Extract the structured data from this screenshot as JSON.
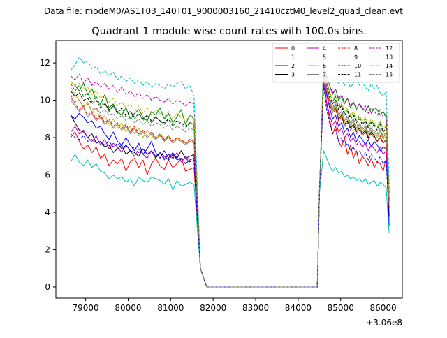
{
  "suptitle": "Data file: modeM0/AS1T03_140T01_9000003160_21410cztM0_level2_quad_clean.evt",
  "chart_data": {
    "type": "line",
    "title": "Quadrant 1 module wise count rates with 100.0s bins.",
    "xlabel": "",
    "ylabel": "",
    "offset_text": "+3.06e8",
    "xlim": [
      78300,
      86450
    ],
    "ylim": [
      -0.6,
      13.2
    ],
    "grid": false,
    "legend_position": "upper-right",
    "x_ticks": [
      79000,
      80000,
      81000,
      82000,
      83000,
      84000,
      85000,
      86000
    ],
    "x_tick_labels": [
      "79000",
      "80000",
      "81000",
      "82000",
      "83000",
      "84000",
      "85000",
      "86000"
    ],
    "y_ticks": [
      0,
      2,
      4,
      6,
      8,
      10,
      12
    ],
    "y_tick_labels": [
      "0",
      "2",
      "4",
      "6",
      "8",
      "10",
      "12"
    ],
    "gap": {
      "drop_start": 81650,
      "zero_start": 81850,
      "zero_end": 84450,
      "rise_end": 84600
    },
    "x_start": 78650,
    "bin": 100,
    "series": [
      {
        "name": "0",
        "color": "#ff0000",
        "dash": "solid",
        "values": [
          8.0,
          8.3,
          7.8,
          7.4,
          7.6,
          7.2,
          7.5,
          6.9,
          7.1,
          6.5,
          6.8,
          6.6,
          6.9,
          6.2,
          6.7,
          6.9,
          6.4,
          6.8,
          6.0,
          6.6,
          6.9,
          6.5,
          6.3,
          6.8,
          6.4,
          6.6,
          6.9,
          6.2,
          6.3,
          6.4
        ],
        "post": [
          11.6,
          9.8,
          9.0,
          8.2,
          8.6,
          7.8,
          7.5,
          8.0,
          7.1,
          7.6,
          6.9,
          7.3,
          6.6,
          7.0,
          6.8,
          6.5,
          6.9,
          6.4,
          6.7,
          6.6,
          6.2,
          6.9,
          5.5
        ]
      },
      {
        "name": "1",
        "color": "#008000",
        "dash": "solid",
        "values": [
          11.0,
          10.8,
          10.5,
          10.9,
          10.3,
          10.6,
          10.0,
          9.8,
          10.3,
          9.6,
          9.8,
          9.4,
          9.2,
          9.6,
          9.0,
          9.3,
          9.5,
          9.1,
          8.9,
          9.4,
          9.2,
          9.6,
          9.0,
          9.3,
          8.8,
          9.1,
          9.5,
          8.7,
          9.2,
          9.0
        ],
        "post": [
          12.0,
          11.3,
          10.8,
          10.3,
          10.6,
          10.0,
          10.2,
          9.8,
          10.1,
          9.6,
          9.9,
          9.5,
          9.8,
          9.6,
          9.4,
          9.7,
          9.3,
          9.6,
          9.5,
          9.2,
          9.4,
          9.1,
          5.0
        ]
      },
      {
        "name": "2",
        "color": "#0000ff",
        "dash": "solid",
        "values": [
          9.2,
          9.0,
          9.3,
          9.1,
          8.8,
          8.9,
          8.5,
          8.6,
          8.2,
          7.9,
          8.3,
          7.8,
          7.6,
          8.0,
          7.6,
          7.3,
          7.7,
          7.1,
          7.4,
          7.8,
          7.2,
          6.9,
          7.3,
          6.9,
          7.2,
          6.8,
          6.9,
          6.6,
          6.8,
          6.9
        ],
        "post": [
          11.5,
          10.3,
          9.6,
          9.0,
          9.2,
          8.6,
          8.8,
          8.3,
          8.5,
          8.0,
          8.3,
          7.8,
          8.1,
          7.9,
          7.6,
          7.9,
          7.5,
          7.8,
          7.6,
          7.3,
          7.5,
          7.4,
          3.3
        ]
      },
      {
        "name": "3",
        "color": "#000000",
        "dash": "solid",
        "values": [
          9.2,
          8.8,
          8.4,
          8.3,
          8.0,
          8.2,
          7.7,
          7.8,
          7.5,
          7.6,
          7.2,
          7.4,
          7.6,
          7.1,
          7.3,
          7.2,
          7.0,
          7.4,
          7.1,
          7.3,
          6.9,
          7.2,
          7.0,
          6.8,
          7.1,
          6.9,
          7.3,
          6.9,
          7.0,
          7.1
        ],
        "post": [
          11.3,
          10.5,
          9.9,
          9.4,
          9.6,
          9.0,
          9.2,
          8.7,
          8.9,
          8.5,
          8.7,
          8.3,
          8.5,
          8.2,
          8.4,
          8.0,
          8.3,
          8.1,
          7.8,
          8.0,
          7.7,
          7.9,
          3.8
        ]
      },
      {
        "name": "4",
        "color": "#bf00bf",
        "dash": "solid",
        "values": [
          8.3,
          8.6,
          8.2,
          8.4,
          8.0,
          7.8,
          8.1,
          7.6,
          7.9,
          7.4,
          7.7,
          7.5,
          7.2,
          7.6,
          7.3,
          7.0,
          7.4,
          7.1,
          6.9,
          7.3,
          7.0,
          7.2,
          6.8,
          7.1,
          6.9,
          7.2,
          6.7,
          7.0,
          6.8,
          6.9
        ],
        "post": [
          11.0,
          9.9,
          9.2,
          8.7,
          8.9,
          8.3,
          8.5,
          8.0,
          8.2,
          7.8,
          8.0,
          7.6,
          7.8,
          7.5,
          7.7,
          7.3,
          7.6,
          7.4,
          7.2,
          7.5,
          7.1,
          7.3,
          4.2
        ]
      },
      {
        "name": "5",
        "color": "#00bfbf",
        "dash": "solid",
        "values": [
          6.7,
          7.1,
          6.7,
          6.5,
          6.8,
          6.4,
          6.6,
          6.2,
          6.1,
          5.8,
          6.0,
          5.8,
          5.9,
          5.6,
          5.8,
          5.4,
          5.9,
          5.7,
          5.6,
          5.9,
          5.8,
          5.7,
          5.5,
          5.8,
          5.2,
          5.7,
          5.4,
          5.5,
          5.6,
          5.5
        ],
        "post": [
          7.3,
          6.9,
          6.5,
          6.2,
          6.4,
          6.1,
          6.2,
          5.9,
          6.0,
          5.8,
          5.9,
          5.7,
          5.8,
          5.6,
          5.8,
          5.5,
          5.6,
          5.7,
          5.4,
          5.6,
          5.5,
          5.3,
          2.9
        ]
      },
      {
        "name": "6",
        "color": "#bfbf00",
        "dash": "solid",
        "values": [
          10.7,
          10.3,
          10.0,
          9.6,
          9.9,
          9.3,
          9.6,
          9.0,
          9.2,
          8.7,
          9.0,
          8.5,
          8.8,
          8.3,
          8.6,
          8.2,
          8.5,
          8.0,
          8.4,
          8.1,
          7.9,
          8.2,
          7.8,
          8.1,
          7.7,
          8.0,
          7.8,
          7.6,
          7.9,
          7.8
        ],
        "post": [
          11.2,
          10.5,
          9.9,
          9.4,
          9.7,
          9.1,
          9.3,
          8.8,
          9.0,
          8.6,
          8.8,
          8.4,
          8.6,
          8.3,
          8.5,
          8.1,
          8.4,
          8.2,
          8.0,
          8.3,
          7.9,
          8.1,
          4.4
        ]
      },
      {
        "name": "7",
        "color": "#808080",
        "dash": "solid",
        "values": [
          10.0,
          9.7,
          9.4,
          9.6,
          9.1,
          9.3,
          8.9,
          9.1,
          8.7,
          8.9,
          8.5,
          8.7,
          8.4,
          8.6,
          8.2,
          8.5,
          8.1,
          8.3,
          8.0,
          8.2,
          7.9,
          8.1,
          7.8,
          8.0,
          7.7,
          7.9,
          7.8,
          7.6,
          7.8,
          7.7
        ],
        "post": [
          11.4,
          10.6,
          10.0,
          9.5,
          9.8,
          9.2,
          9.4,
          8.9,
          9.1,
          8.7,
          8.9,
          8.5,
          8.7,
          8.4,
          8.6,
          8.2,
          8.5,
          8.3,
          8.1,
          8.4,
          8.0,
          8.2,
          4.6
        ]
      },
      {
        "name": "8",
        "color": "#ff0000",
        "dash": "dashed",
        "values": [
          10.3,
          9.8,
          9.5,
          9.7,
          9.2,
          9.4,
          9.0,
          9.2,
          8.8,
          9.0,
          8.6,
          8.8,
          8.5,
          8.7,
          8.3,
          8.6,
          8.2,
          8.4,
          8.1,
          8.3,
          8.0,
          8.2,
          7.9,
          8.1,
          7.8,
          8.0,
          7.9,
          7.7,
          7.9,
          7.8
        ],
        "post": [
          11.3,
          10.4,
          9.8,
          9.3,
          9.5,
          8.9,
          9.1,
          8.6,
          8.8,
          8.4,
          8.6,
          8.2,
          8.4,
          8.1,
          8.3,
          7.9,
          8.2,
          8.0,
          7.8,
          8.1,
          7.7,
          7.9,
          4.3
        ]
      },
      {
        "name": "9",
        "color": "#008000",
        "dash": "dashed",
        "values": [
          10.9,
          10.5,
          10.8,
          10.2,
          10.4,
          9.9,
          10.2,
          9.7,
          9.9,
          9.4,
          9.7,
          9.3,
          9.5,
          9.1,
          9.4,
          9.0,
          9.3,
          8.9,
          9.2,
          8.8,
          9.1,
          8.9,
          8.7,
          9.0,
          8.6,
          8.9,
          8.7,
          8.5,
          8.8,
          8.7
        ],
        "post": [
          11.8,
          11.0,
          10.4,
          9.9,
          10.2,
          9.6,
          9.8,
          9.3,
          9.5,
          9.1,
          9.3,
          8.9,
          9.1,
          8.8,
          9.0,
          8.6,
          8.9,
          8.7,
          8.5,
          8.8,
          8.4,
          8.6,
          4.8
        ]
      },
      {
        "name": "10",
        "color": "#0000ff",
        "dash": "dashed",
        "values": [
          8.2,
          8.0,
          7.9,
          8.1,
          7.8,
          7.9,
          7.7,
          7.8,
          7.6,
          7.8,
          7.5,
          7.7,
          7.4,
          7.6,
          7.3,
          7.5,
          7.2,
          7.4,
          7.1,
          7.3,
          7.0,
          7.2,
          6.9,
          7.1,
          6.9,
          7.0,
          6.8,
          6.9,
          6.7,
          6.8
        ],
        "post": [
          10.8,
          9.5,
          8.8,
          8.2,
          8.4,
          7.8,
          8.0,
          7.5,
          7.7,
          7.3,
          7.5,
          7.1,
          7.3,
          7.0,
          7.2,
          6.8,
          7.1,
          6.9,
          6.7,
          7.0,
          6.6,
          6.8,
          3.6
        ]
      },
      {
        "name": "11",
        "color": "#000000",
        "dash": "dashed",
        "values": [
          10.5,
          10.2,
          10.4,
          10.0,
          10.1,
          9.8,
          10.0,
          9.6,
          9.8,
          9.5,
          9.7,
          9.3,
          9.6,
          9.2,
          9.4,
          9.1,
          9.3,
          9.0,
          9.2,
          8.9,
          9.1,
          8.9,
          8.8,
          9.0,
          8.7,
          8.9,
          8.8,
          8.6,
          8.8,
          8.7
        ],
        "post": [
          11.6,
          10.8,
          10.2,
          9.8,
          10.0,
          9.5,
          9.7,
          9.2,
          9.4,
          9.0,
          9.2,
          8.8,
          9.0,
          8.7,
          8.9,
          8.5,
          8.8,
          8.6,
          8.4,
          8.7,
          8.3,
          8.5,
          4.7
        ]
      },
      {
        "name": "12",
        "color": "#bf00bf",
        "dash": "dashed",
        "values": [
          11.3,
          11.1,
          11.4,
          10.9,
          11.2,
          10.8,
          11.0,
          10.7,
          10.9,
          10.6,
          10.8,
          10.4,
          10.7,
          10.3,
          10.5,
          10.2,
          10.4,
          10.1,
          10.3,
          10.0,
          10.2,
          10.0,
          9.9,
          10.1,
          9.8,
          10.0,
          9.9,
          9.7,
          9.9,
          9.8
        ],
        "post": [
          11.7,
          11.2,
          10.8,
          10.4,
          10.6,
          10.1,
          10.3,
          9.9,
          10.1,
          9.7,
          9.9,
          9.6,
          9.8,
          9.5,
          9.7,
          9.3,
          9.6,
          9.4,
          9.2,
          9.5,
          9.1,
          9.3,
          5.1
        ]
      },
      {
        "name": "13",
        "color": "#00bfbf",
        "dash": "dashed",
        "values": [
          11.6,
          11.9,
          12.3,
          12.0,
          12.1,
          11.7,
          11.8,
          11.4,
          11.6,
          11.3,
          11.5,
          11.1,
          11.3,
          11.0,
          11.2,
          10.9,
          11.1,
          10.8,
          11.0,
          10.7,
          10.9,
          10.8,
          10.6,
          10.9,
          10.7,
          10.9,
          11.0,
          10.6,
          10.8,
          10.2
        ],
        "post": [
          12.4,
          11.6,
          11.3,
          11.0,
          11.2,
          10.9,
          11.1,
          10.8,
          11.0,
          10.7,
          10.9,
          11.3,
          10.8,
          11.0,
          10.7,
          10.5,
          10.9,
          10.6,
          10.8,
          10.4,
          10.2,
          10.5,
          5.6
        ]
      },
      {
        "name": "14",
        "color": "#bfbf00",
        "dash": "dashed",
        "values": [
          11.0,
          10.8,
          10.9,
          10.6,
          10.7,
          10.3,
          10.5,
          10.1,
          10.3,
          9.9,
          10.1,
          9.7,
          9.9,
          9.6,
          9.8,
          9.4,
          9.7,
          9.3,
          9.6,
          9.2,
          9.5,
          9.3,
          9.1,
          9.4,
          9.0,
          9.3,
          9.1,
          8.9,
          9.2,
          9.1
        ],
        "post": [
          11.9,
          11.1,
          10.5,
          10.0,
          10.3,
          9.7,
          9.9,
          9.4,
          9.6,
          9.2,
          9.4,
          9.0,
          9.2,
          8.9,
          9.1,
          8.7,
          9.0,
          8.8,
          8.6,
          8.9,
          8.5,
          8.7,
          4.9
        ]
      },
      {
        "name": "15",
        "color": "#808080",
        "dash": "dashed",
        "values": [
          10.1,
          9.9,
          10.0,
          9.7,
          9.8,
          9.5,
          9.6,
          9.3,
          9.5,
          9.2,
          9.3,
          9.0,
          9.2,
          8.9,
          9.1,
          8.8,
          9.0,
          8.7,
          8.9,
          8.6,
          8.8,
          8.7,
          8.5,
          8.7,
          8.4,
          8.6,
          8.5,
          8.3,
          8.5,
          8.4
        ],
        "post": [
          11.5,
          10.7,
          10.1,
          9.6,
          9.9,
          9.3,
          9.5,
          9.0,
          9.2,
          8.8,
          9.0,
          8.6,
          8.8,
          8.5,
          8.7,
          8.3,
          8.6,
          8.4,
          8.2,
          8.5,
          8.1,
          8.3,
          4.5
        ]
      }
    ]
  }
}
